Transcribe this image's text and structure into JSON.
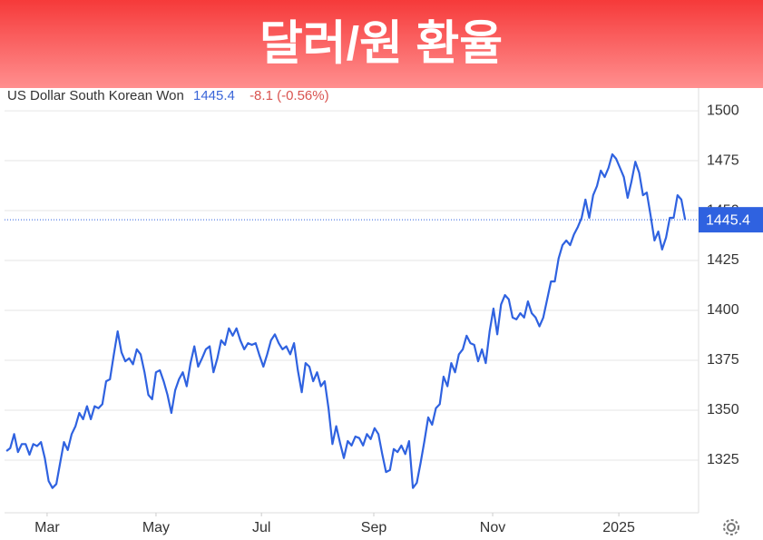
{
  "chart_data": {
    "type": "line",
    "title": "달러/원 환율",
    "series_name": "US Dollar South Korean Won",
    "last_value": 1445.4,
    "change": "-8.1 (-0.56%)",
    "color": "#2f62e0",
    "values": [
      1329.5,
      1331,
      1338,
      1329,
      1333,
      1333,
      1327.7,
      1333,
      1332,
      1334,
      1326,
      1314.5,
      1311,
      1313,
      1323.6,
      1334,
      1330,
      1338,
      1342,
      1348.6,
      1345.5,
      1352,
      1345.5,
      1352,
      1351,
      1353,
      1364.5,
      1365.5,
      1378,
      1389.5,
      1379,
      1374.5,
      1376,
      1373,
      1380.5,
      1378,
      1369,
      1357.7,
      1355.5,
      1369,
      1370,
      1364.5,
      1357.7,
      1348.6,
      1360,
      1365.5,
      1369,
      1362,
      1373.6,
      1382,
      1371.8,
      1376,
      1380.5,
      1382,
      1369,
      1376,
      1385,
      1382.7,
      1391,
      1387.3,
      1391,
      1385,
      1380.5,
      1383.6,
      1382.7,
      1383.6,
      1377.3,
      1371.8,
      1378,
      1385,
      1388,
      1383.6,
      1380.5,
      1382,
      1378,
      1383.6,
      1370,
      1359,
      1373.6,
      1371.8,
      1364.5,
      1369,
      1362,
      1364.5,
      1351,
      1333,
      1342,
      1333.6,
      1326,
      1334.5,
      1332.3,
      1336.8,
      1336,
      1332.3,
      1338,
      1335.5,
      1341,
      1338,
      1328,
      1319,
      1320,
      1330.5,
      1329,
      1332.3,
      1328,
      1334.5,
      1311,
      1313.6,
      1323.6,
      1334.5,
      1346.4,
      1342.7,
      1351,
      1353,
      1366.8,
      1362,
      1373.6,
      1369,
      1378,
      1380.5,
      1387.3,
      1383.6,
      1382.7,
      1374.5,
      1380.5,
      1373.6,
      1389.5,
      1400.9,
      1388,
      1403,
      1407.7,
      1405.5,
      1396.4,
      1395.5,
      1398.6,
      1396.4,
      1404.5,
      1398.6,
      1396.4,
      1392,
      1396.4,
      1405.5,
      1414.5,
      1414.5,
      1426,
      1432.7,
      1435,
      1432.7,
      1438,
      1441.8,
      1446.4,
      1455.5,
      1446.4,
      1457.7,
      1462.3,
      1470,
      1466.8,
      1471.4,
      1478.2,
      1476,
      1471.4,
      1466.8,
      1456.4,
      1464.5,
      1474.5,
      1469,
      1457.7,
      1459,
      1447.3,
      1435,
      1439.5,
      1430.5,
      1436.4,
      1446.4,
      1446.4,
      1457.7,
      1455.5,
      1445.4
    ],
    "xlim": [
      -0.5,
      180.5
    ],
    "xticks": [
      {
        "value": 10.6,
        "label": "Mar"
      },
      {
        "value": 39.0,
        "label": "May"
      },
      {
        "value": 66.5,
        "label": "Jul"
      },
      {
        "value": 95.8,
        "label": "Sep"
      },
      {
        "value": 126.8,
        "label": "Nov"
      },
      {
        "value": 159.7,
        "label": "2025"
      }
    ],
    "ylim": [
      1298.6,
      1511.4
    ],
    "yticks": [
      1325,
      1350,
      1375,
      1400,
      1425,
      1450,
      1475,
      1500
    ],
    "grid": true
  }
}
